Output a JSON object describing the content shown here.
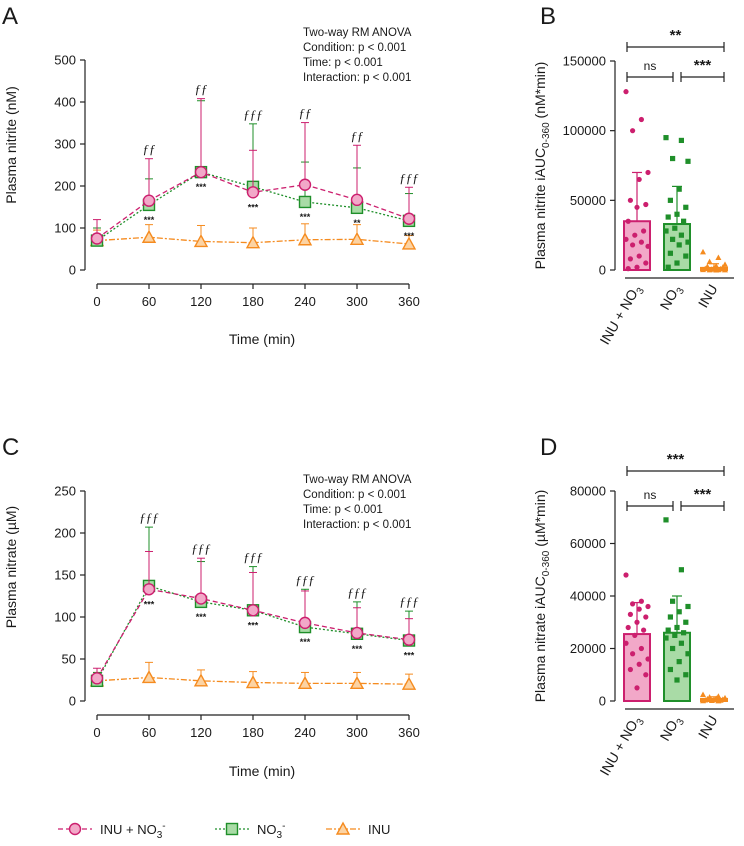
{
  "colors": {
    "inu_no3": "#cc1f6e",
    "no3": "#1f8f2a",
    "inu": "#f58b1f",
    "inu_no3_fill": "#f2a8c8",
    "no3_fill": "#a9dba6",
    "inu_fill": "#fcd3a3"
  },
  "legend": [
    {
      "label": "INU + NO",
      "sub": "3",
      "sup": "-",
      "key": "inu_no3",
      "marker": "circle",
      "dash": "dashed"
    },
    {
      "label": "NO",
      "sub": "3",
      "sup": "-",
      "key": "no3",
      "marker": "square",
      "dash": "dotted"
    },
    {
      "label": "INU",
      "sub": "",
      "sup": "",
      "key": "inu",
      "marker": "triangle",
      "dash": "dashdot"
    }
  ],
  "chart_data": [
    {
      "panel": "A",
      "type": "line",
      "ylabel": "Plasma nitrite (nM)",
      "xlabel": "Time (min)",
      "x": [
        0,
        60,
        120,
        180,
        240,
        300,
        360
      ],
      "xticks": [
        "0",
        "60",
        "120",
        "180",
        "240",
        "300",
        "360"
      ],
      "ylim": [
        0,
        500
      ],
      "yticks": [
        "0",
        "100",
        "200",
        "300",
        "400",
        "500"
      ],
      "series": [
        {
          "key": "inu_no3",
          "name": "INU + NO3-",
          "values": [
            75,
            165,
            233,
            185,
            203,
            167,
            122
          ],
          "err": [
            45,
            100,
            175,
            100,
            148,
            130,
            75
          ]
        },
        {
          "key": "no3",
          "name": "NO3-",
          "values": [
            70,
            155,
            233,
            198,
            162,
            148,
            117
          ],
          "err": [
            30,
            62,
            170,
            150,
            95,
            95,
            65
          ]
        },
        {
          "key": "inu",
          "name": "INU",
          "values": [
            70,
            78,
            68,
            65,
            72,
            73,
            62
          ],
          "err": [
            25,
            30,
            38,
            35,
            38,
            35,
            20
          ]
        }
      ],
      "stars": [
        "",
        "***",
        "***",
        "***",
        "***",
        "**",
        "***"
      ],
      "ff": [
        "",
        "ƒƒ",
        "ƒƒ",
        "ƒƒƒ",
        "ƒƒ",
        "ƒƒ",
        "ƒƒƒ"
      ],
      "anova": [
        "Two-way RM ANOVA",
        "Condition: p < 0.001",
        "Time: p < 0.001",
        "Interaction: p < 0.001"
      ]
    },
    {
      "panel": "B",
      "type": "bar",
      "ylabel": "Plasma nitrite iAUC",
      "ylabel_sub": "0-360",
      "ylabel_unit": " (nM*min)",
      "categories": [
        "INU + NO3",
        "NO3",
        "INU"
      ],
      "ylim": [
        0,
        150000
      ],
      "yticks": [
        "0",
        "50000",
        "100000",
        "150000"
      ],
      "means": [
        35000,
        33000,
        1500
      ],
      "err": [
        35000,
        27000,
        3000
      ],
      "points": [
        [
          128000,
          108000,
          100000,
          70000,
          65000,
          50000,
          47000,
          45000,
          35000,
          28000,
          25000,
          22000,
          20000,
          18000,
          17000,
          10000,
          8000,
          5000,
          2000,
          1000
        ],
        [
          95000,
          93000,
          80000,
          78000,
          58000,
          50000,
          45000,
          40000,
          38000,
          35000,
          30000,
          28000,
          25000,
          22000,
          20000,
          18000,
          12000,
          10000,
          5000,
          2000
        ],
        [
          13000,
          9000,
          6000,
          4000,
          3000,
          2500,
          2000,
          1500,
          1000,
          800,
          500,
          300,
          200,
          100,
          50,
          20
        ]
      ],
      "brackets": [
        {
          "from": 0,
          "to": 2,
          "label": "**"
        },
        {
          "from": 0,
          "to": 1,
          "label": "ns"
        },
        {
          "from": 1,
          "to": 2,
          "label": "***"
        }
      ]
    },
    {
      "panel": "C",
      "type": "line",
      "ylabel": "Plasma nitrate (µM)",
      "xlabel": "Time (min)",
      "x": [
        0,
        60,
        120,
        180,
        240,
        300,
        360
      ],
      "xticks": [
        "0",
        "60",
        "120",
        "180",
        "240",
        "300",
        "360"
      ],
      "ylim": [
        0,
        250
      ],
      "yticks": [
        "0",
        "50",
        "100",
        "150",
        "200",
        "250"
      ],
      "series": [
        {
          "key": "inu_no3",
          "name": "INU + NO3-",
          "values": [
            27,
            133,
            122,
            108,
            93,
            81,
            73
          ],
          "err": [
            12,
            45,
            48,
            45,
            38,
            30,
            25
          ]
        },
        {
          "key": "no3",
          "name": "NO3-",
          "values": [
            24,
            137,
            118,
            108,
            88,
            80,
            72
          ],
          "err": [
            10,
            70,
            48,
            52,
            45,
            38,
            35
          ]
        },
        {
          "key": "inu",
          "name": "INU",
          "values": [
            24,
            28,
            24,
            22,
            21,
            21,
            20
          ],
          "err": [
            10,
            18,
            13,
            13,
            13,
            13,
            12
          ]
        }
      ],
      "stars": [
        "",
        "***",
        "***",
        "***",
        "***",
        "***",
        "***"
      ],
      "ff": [
        "",
        "ƒƒƒ",
        "ƒƒƒ",
        "ƒƒƒ",
        "ƒƒƒ",
        "ƒƒƒ",
        "ƒƒƒ"
      ],
      "anova": [
        "Two-way RM ANOVA",
        "Condition: p < 0.001",
        "Time: p < 0.001",
        "Interaction: p < 0.001"
      ]
    },
    {
      "panel": "D",
      "type": "bar",
      "ylabel": "Plasma nitrate iAUC",
      "ylabel_sub": "0-360",
      "ylabel_unit": " (µM*min)",
      "categories": [
        "INU + NO3",
        "NO3",
        "INU"
      ],
      "ylim": [
        0,
        80000
      ],
      "yticks": [
        "0",
        "20000",
        "40000",
        "60000",
        "80000"
      ],
      "means": [
        25500,
        26000,
        800
      ],
      "err": [
        12000,
        14000,
        800
      ],
      "points": [
        [
          48000,
          38000,
          37000,
          36000,
          35000,
          33000,
          32000,
          30000,
          28000,
          27000,
          25000,
          22000,
          20000,
          18000,
          16000,
          14000,
          12000,
          10000,
          5000
        ],
        [
          69000,
          50000,
          38000,
          36000,
          34000,
          32000,
          30000,
          28000,
          27000,
          26000,
          25000,
          24000,
          22000,
          20000,
          18000,
          15000,
          12000,
          10000,
          8000
        ],
        [
          2500,
          1800,
          1500,
          1200,
          1000,
          800,
          600,
          500,
          400,
          300,
          200,
          100,
          50
        ]
      ],
      "brackets": [
        {
          "from": 0,
          "to": 2,
          "label": "***"
        },
        {
          "from": 0,
          "to": 1,
          "label": "ns"
        },
        {
          "from": 1,
          "to": 2,
          "label": "***"
        }
      ]
    }
  ]
}
